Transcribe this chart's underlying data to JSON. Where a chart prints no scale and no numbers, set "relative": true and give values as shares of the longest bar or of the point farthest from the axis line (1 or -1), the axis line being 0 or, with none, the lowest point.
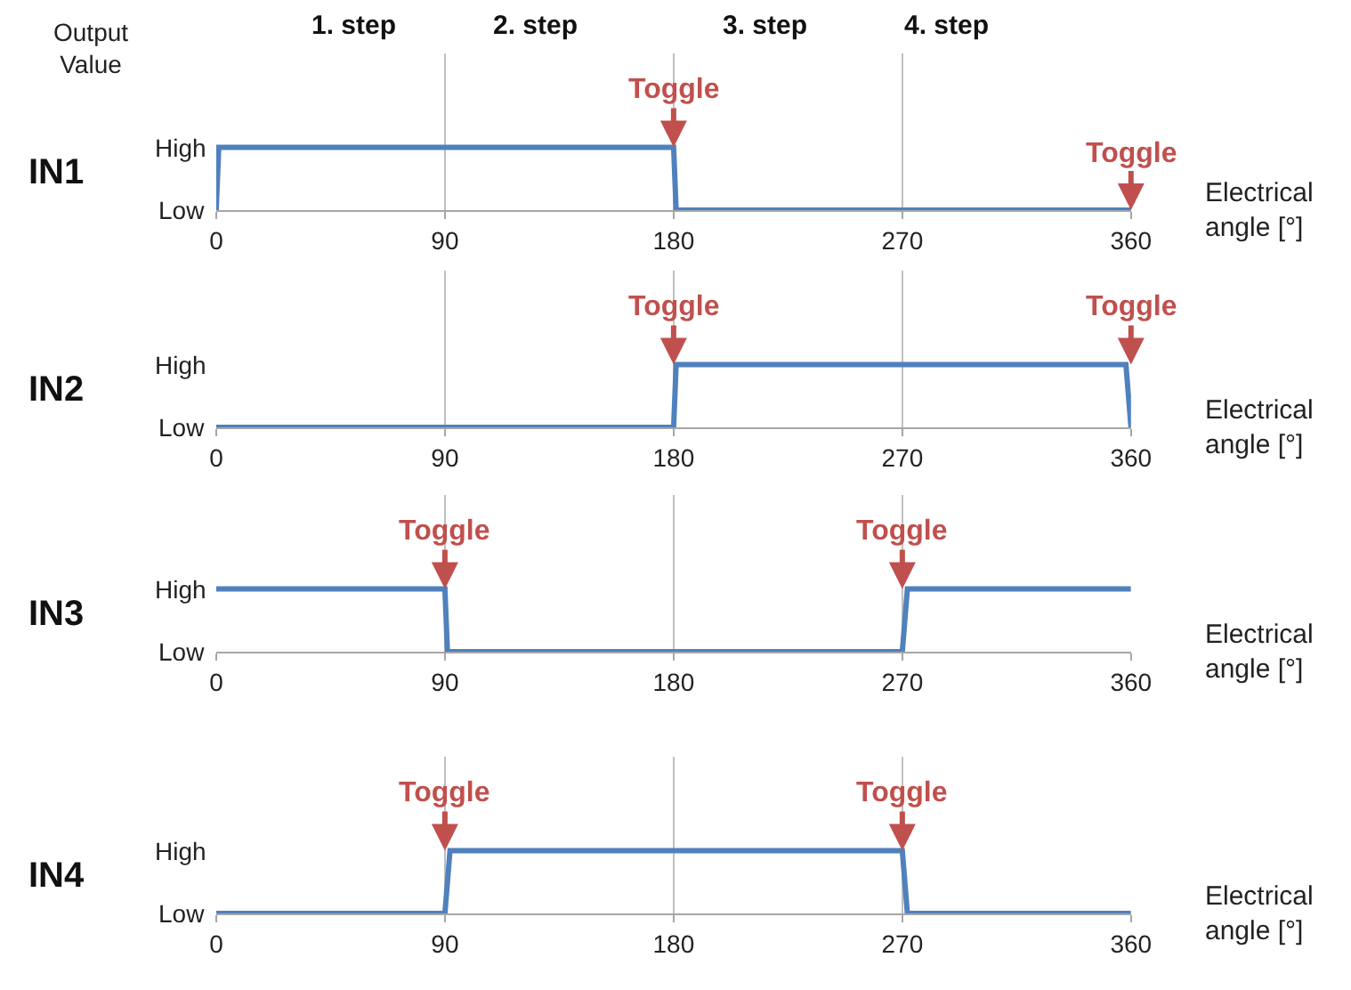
{
  "chart_data": [
    {
      "type": "line",
      "relative": true,
      "title": "IN1",
      "ylabel": "Output Value",
      "xlabel": "Electrical angle [°]",
      "xlim": [
        0,
        360
      ],
      "xticks": [
        0,
        90,
        180,
        270,
        360
      ],
      "grid": "x",
      "series": [
        {
          "color": "#4f81bd",
          "x": [
            0,
            1,
            180,
            181,
            360
          ],
          "values": [
            0,
            1,
            1,
            0,
            0
          ]
        }
      ],
      "annotations": [
        "1. step",
        "2. step",
        "3. step",
        "4. step",
        "High",
        "Low",
        {
          "text": "Toggle",
          "x": 180,
          "y": 1
        },
        {
          "text": "Toggle",
          "x": 360,
          "y": 0
        }
      ]
    },
    {
      "type": "line",
      "relative": true,
      "title": "IN2",
      "xlabel": "Electrical angle [°]",
      "xlim": [
        0,
        360
      ],
      "xticks": [
        0,
        90,
        180,
        270,
        360
      ],
      "grid": "x",
      "series": [
        {
          "color": "#4f81bd",
          "x": [
            0,
            180,
            181,
            358,
            360
          ],
          "values": [
            0,
            0,
            1,
            1,
            0
          ]
        }
      ],
      "annotations": [
        "High",
        "Low",
        {
          "text": "Toggle",
          "x": 180,
          "y": 1
        },
        {
          "text": "Toggle",
          "x": 360,
          "y": 1
        }
      ]
    },
    {
      "type": "line",
      "relative": true,
      "title": "IN3",
      "xlabel": "Electrical angle [°]",
      "xlim": [
        0,
        360
      ],
      "xticks": [
        0,
        90,
        180,
        270,
        360
      ],
      "grid": "x",
      "series": [
        {
          "color": "#4f81bd",
          "x": [
            0,
            90,
            91,
            270,
            272,
            360
          ],
          "values": [
            1,
            1,
            0,
            0,
            1,
            1
          ]
        }
      ],
      "annotations": [
        "High",
        "Low",
        {
          "text": "Toggle",
          "x": 90,
          "y": 1
        },
        {
          "text": "Toggle",
          "x": 270,
          "y": 1
        }
      ]
    },
    {
      "type": "line",
      "relative": true,
      "title": "IN4",
      "xlabel": "Electrical angle [°]",
      "xlim": [
        0,
        360
      ],
      "xticks": [
        0,
        90,
        180,
        270,
        360
      ],
      "grid": "x",
      "series": [
        {
          "color": "#4f81bd",
          "x": [
            0,
            90,
            92,
            270,
            272,
            360
          ],
          "values": [
            0,
            0,
            1,
            1,
            0,
            0
          ]
        }
      ],
      "annotations": [
        "High",
        "Low",
        {
          "text": "Toggle",
          "x": 90,
          "y": 1
        },
        {
          "text": "Toggle",
          "x": 270,
          "y": 1
        }
      ]
    }
  ]
}
